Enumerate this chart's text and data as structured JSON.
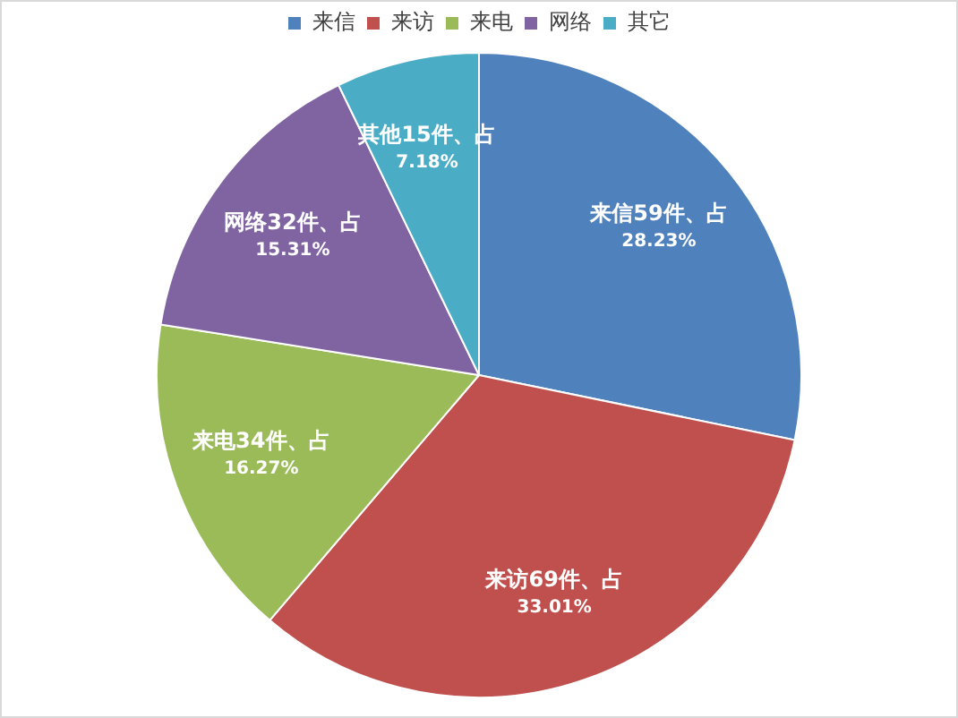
{
  "chart_data": {
    "type": "pie",
    "categories": [
      "来信",
      "来访",
      "来电",
      "网络",
      "其它"
    ],
    "values": [
      59,
      69,
      34,
      32,
      15
    ],
    "colors": [
      "#4f81bd",
      "#c0504d",
      "#9bbb59",
      "#8064a2",
      "#4bacc6"
    ],
    "value_labels": [
      "来信59件、占\n28.23%",
      "来访69件、占\n33.01%",
      "来电34件、占\n16.27%",
      "网络32件、占\n15.31%",
      "其他15件、占\n7.18%"
    ],
    "legend": "top"
  }
}
